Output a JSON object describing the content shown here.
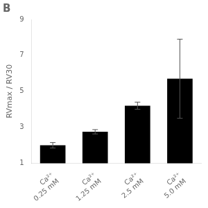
{
  "chart_data": {
    "type": "bar",
    "title": "B",
    "ylabel": "RVmax / RV30",
    "categories": [
      "Ca²⁺\n0.25 mM",
      "Ca²⁺\n1.25 mM",
      "Ca²⁺\n2.5 mM",
      "Ca²⁺\n5.0 mM"
    ],
    "values": [
      2.0,
      2.75,
      4.2,
      5.7
    ],
    "errors": [
      0.15,
      0.12,
      0.2,
      2.2
    ],
    "color": "#000000",
    "ylim": [
      1,
      9
    ],
    "yticks": [
      1,
      3,
      5,
      7,
      9
    ],
    "grid": false
  }
}
